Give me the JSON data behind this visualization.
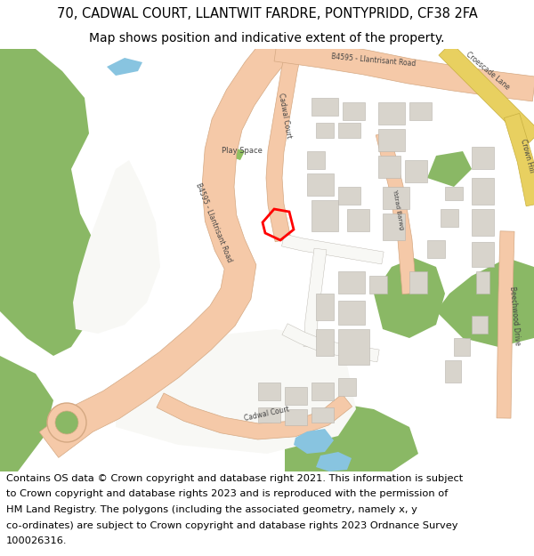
{
  "title_line1": "70, CADWAL COURT, LLANTWIT FARDRE, PONTYPRIDD, CF38 2FA",
  "title_line2": "Map shows position and indicative extent of the property.",
  "footer_lines": [
    "Contains OS data © Crown copyright and database right 2021. This information is subject",
    "to Crown copyright and database rights 2023 and is reproduced with the permission of",
    "HM Land Registry. The polygons (including the associated geometry, namely x, y",
    "co-ordinates) are subject to Crown copyright and database rights 2023 Ordnance Survey",
    "100026316."
  ],
  "title_fontsize": 10.5,
  "subtitle_fontsize": 10.0,
  "footer_fontsize": 8.2,
  "bg_color": "#ffffff",
  "map_bg": "#f2efe9",
  "green_color": "#8ab865",
  "white_area": "#f8f8f5",
  "road_color": "#f5c9a8",
  "road_edge": "#d4a882",
  "road_yellow": "#e8d060",
  "road_yellow_edge": "#c8b040",
  "building_color": "#d8d4cc",
  "building_edge": "#b8b4ac",
  "highlight_color": "#ff0000",
  "water_color": "#88c4e0",
  "text_color": "#444444",
  "green_small": "#90c060"
}
